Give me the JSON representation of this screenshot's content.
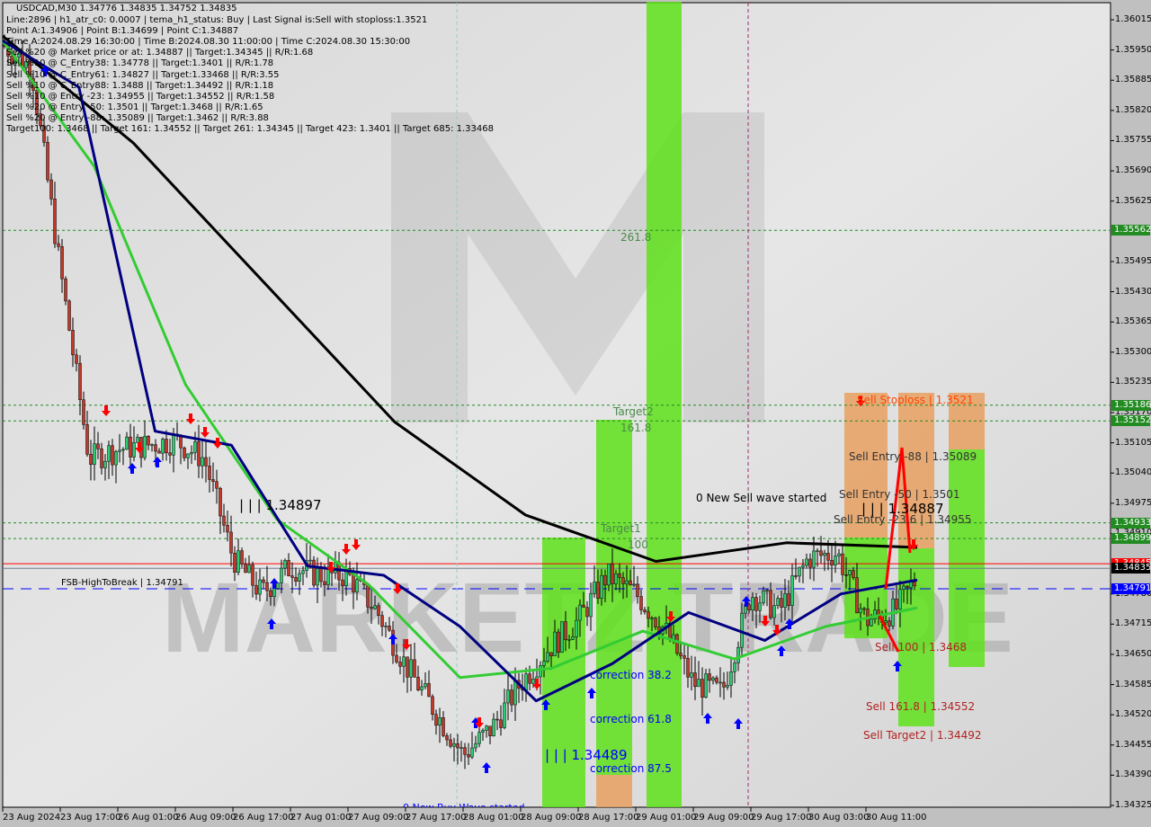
{
  "header": {
    "symbol_line": "USDCAD,M30  1.34776 1.34835 1.34752 1.34835",
    "info_lines": [
      "Line:2896 | h1_atr_c0: 0.0007 | tema_h1_status: Buy | Last Signal is:Sell with stoploss:1.3521",
      "Point A:1.34906 | Point B:1.34699 | Point C:1.34887",
      "Time A:2024.08.29 16:30:00 | Time B:2024.08.30 11:00:00 | Time C:2024.08.30 15:30:00",
      "Sell %20 @ Market price or at: 1.34887 || Target:1.34345 || R/R:1.68",
      "Sell %10 @ C_Entry38: 1.34778 || Target:1.3401 || R/R:1.78",
      "Sell %10 @ C_Entry61: 1.34827 || Target:1.33468 || R/R:3.55",
      "Sell %10 @ C_Entry88: 1.3488 || Target:1.34492 || R/R:1.18",
      "Sell %10 @ Entry -23: 1.34955 || Target:1.34552 || R/R:1.58",
      "Sell %20 @ Entry -50: 1.3501 || Target:1.3468 || R/R:1.65",
      "Sell %20 @ Entry -88: 1.35089 || Target:1.3462 || R/R:3.88",
      "Target100: 1.3468 || Target 161: 1.34552 || Target 261: 1.34345 || Target 423: 1.3401 || Target 685: 1.33468"
    ]
  },
  "annotations": {
    "fib_261": "261.8",
    "target2": "Target2",
    "fib_161": "161.8",
    "target1": "Target1",
    "fib_100": "100",
    "new_sell_wave": "0 New Sell wave started",
    "level_34897": "| | | 1.34897",
    "level_34887": "| | | 1.34887",
    "level_34489": "| | | 1.34489",
    "fsb": "FSB-HighToBreak | 1.34791",
    "corr_382": "correction 38.2",
    "corr_618": "correction 61.8",
    "corr_875": "correction 87.5",
    "sell_stoploss": "Sell Stoploss | 1.3521",
    "sell_entry_88": "Sell Entry -88 | 1.35089",
    "sell_entry_50": "Sell Entry -50 | 1.3501",
    "sell_entry_23": "Sell Entry -23.6 | 1.34955",
    "sell_100": "Sell 100 | 1.3468",
    "sell_1618": "Sell 161.8 | 1.34552",
    "sell_target2": "Sell Target2 | 1.34492",
    "new_buy_wave": "0 New Buy Wave started",
    "watermark": "MARKETZ TRADE"
  },
  "colors": {
    "background": "#dcdcdc",
    "bull": "#2ecc71",
    "bear": "#c0392b",
    "ma_black": "#000000",
    "ma_navy": "#000080",
    "ma_green": "#33cc33",
    "zone_green": "#5ee01a",
    "zone_orange": "#e8a060",
    "level_green": "#228b22",
    "price_line": "#000000",
    "fsb_blue": "#0000ff"
  },
  "chart_data": {
    "type": "candlestick",
    "symbol": "USDCAD",
    "timeframe": "M30",
    "ylim": [
      1.34325,
      1.36015
    ],
    "yticks": [
      "1.36015",
      "1.35950",
      "1.35885",
      "1.35820",
      "1.35755",
      "1.35690",
      "1.35625",
      "1.35495",
      "1.35430",
      "1.35365",
      "1.35300",
      "1.35235",
      "1.35170",
      "1.35105",
      "1.35040",
      "1.34975",
      "1.34910",
      "1.34780",
      "1.34715",
      "1.34650",
      "1.34585",
      "1.34520",
      "1.34455",
      "1.34390",
      "1.34325"
    ],
    "xticks": [
      "23 Aug 2024",
      "23 Aug 17:00",
      "26 Aug 01:00",
      "26 Aug 09:00",
      "26 Aug 17:00",
      "27 Aug 01:00",
      "27 Aug 09:00",
      "27 Aug 17:00",
      "28 Aug 01:00",
      "28 Aug 09:00",
      "28 Aug 17:00",
      "29 Aug 01:00",
      "29 Aug 09:00",
      "29 Aug 17:00",
      "30 Aug 03:00",
      "30 Aug 11:00"
    ],
    "price_path": [
      1.35961,
      1.35913,
      1.35477,
      1.35071,
      1.35091,
      1.351,
      1.3511,
      1.35071,
      1.34858,
      1.34781,
      1.34839,
      1.3482,
      1.3482,
      1.34743,
      1.34627,
      1.3453,
      1.34433,
      1.34491,
      1.34588,
      1.34665,
      1.34723,
      1.3482,
      1.34781,
      1.34704,
      1.34588,
      1.34568,
      1.34781,
      1.34743,
      1.34858,
      1.34868,
      1.34723,
      1.34743,
      1.34835
    ],
    "price_path_note_unit": "4 hour steps",
    "level_tags": [
      {
        "price": "1.35562",
        "color": "#228b22"
      },
      {
        "price": "1.35186",
        "color": "#228b22"
      },
      {
        "price": "1.35152",
        "color": "#228b22"
      },
      {
        "price": "1.34933",
        "color": "#228b22"
      },
      {
        "price": "1.34899",
        "color": "#228b22"
      },
      {
        "price": "1.34845",
        "color": "#ff0000"
      },
      {
        "price": "1.34835",
        "color": "#000000"
      },
      {
        "price": "1.34791",
        "color": "#0000ff"
      }
    ],
    "ma_black": [
      1.3598,
      1.3575,
      1.3545,
      1.3515,
      1.3495,
      1.3485,
      1.3489,
      1.3488
    ],
    "ma_navy": [
      1.3597,
      1.3587,
      1.3513,
      1.351,
      1.3484,
      1.3482,
      1.3471,
      1.3455,
      1.3463,
      1.3474,
      1.3468,
      1.3478,
      1.3481
    ],
    "ma_green": [
      1.3597,
      1.357,
      1.3523,
      1.3494,
      1.348,
      1.346,
      1.3462,
      1.347,
      1.3464,
      1.3471,
      1.3475
    ]
  }
}
